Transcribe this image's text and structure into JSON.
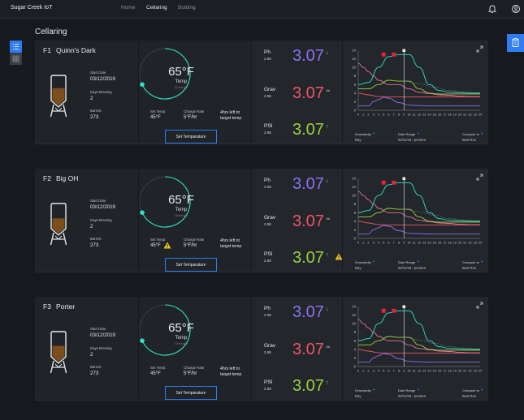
{
  "app": {
    "title": "Sugar Creek IoT"
  },
  "nav": {
    "tabs": [
      "Home",
      "Cellaring",
      "Bottling"
    ],
    "active": "Cellaring"
  },
  "page": {
    "title": "Cellaring"
  },
  "icons": {
    "notification": "bell-icon",
    "user": "user-icon",
    "list_view": "list-icon",
    "grid_view": "grid-icon",
    "clipboard": "clipboard-icon",
    "expand": "expand-icon"
  },
  "colors": {
    "accent": "#2e7df2",
    "teal": "#2ee6c4",
    "ph": "#8f6ff0",
    "grav": "#ef5468",
    "psi": "#9bd13a",
    "beer": "#7c4e1b",
    "warning": "#f3c522",
    "marker": "#e0243a"
  },
  "cards": [
    {
      "id": "F1",
      "name": "Quinn's Dark",
      "start_date_label": "Start Date",
      "start_date": "03/12/2019",
      "days_label": "Days Brewing",
      "days": "2",
      "barrels_label": "Barrels",
      "barrels": "273",
      "fill_level": 0.62,
      "temp": {
        "value": "65°F",
        "label": "Temp",
        "ago": "51 min ago",
        "dial_fraction": 0.68
      },
      "set_temp_label": "Set Temp:",
      "set_temp": "45°F",
      "set_temp_warning": false,
      "change_rate_label": "Change Rate",
      "change_rate": "5°F/hr",
      "time_left_line1": "4hrs left to",
      "time_left_line2": "target temp",
      "button": "Set Temparature",
      "metrics": [
        {
          "name": "Ph",
          "sub": "2.98",
          "value": "3.07",
          "trend": "↓",
          "warning": false
        },
        {
          "name": "Grav",
          "sub": "2.98",
          "value": "3.07",
          "trend": "≃",
          "warning": false
        },
        {
          "name": "PSI",
          "sub": "2.98",
          "value": "3.07",
          "trend": "↑",
          "warning": false
        }
      ]
    },
    {
      "id": "F2",
      "name": "Big OH",
      "start_date_label": "Start Date",
      "start_date": "03/12/2019",
      "days_label": "Days Brewing",
      "days": "2",
      "barrels_label": "Barrels",
      "barrels": "273",
      "fill_level": 0.52,
      "temp": {
        "value": "65°F",
        "label": "Temp",
        "ago": "25 min ago",
        "dial_fraction": 0.68
      },
      "set_temp_label": "Set Temp:",
      "set_temp": "45°F",
      "set_temp_warning": true,
      "change_rate_label": "Change Rate",
      "change_rate": "5°F/hr",
      "time_left_line1": "4hrs left to",
      "time_left_line2": "target temp",
      "button": "Set Temparature",
      "metrics": [
        {
          "name": "Ph",
          "sub": "2.98",
          "value": "3.07",
          "trend": "↓",
          "warning": false
        },
        {
          "name": "Grav",
          "sub": "2.98",
          "value": "3.07",
          "trend": "≃",
          "warning": false
        },
        {
          "name": "PSI",
          "sub": "2.98",
          "value": "3.07",
          "trend": "↑",
          "warning": true
        }
      ]
    },
    {
      "id": "F3",
      "name": "Porter",
      "start_date_label": "Start Date",
      "start_date": "03/12/2019",
      "days_label": "Days Brewing",
      "days": "2",
      "barrels_label": "Barrels",
      "barrels": "273",
      "fill_level": 0.55,
      "temp": {
        "value": "65°F",
        "label": "Temp",
        "ago": "43 min ago",
        "dial_fraction": 0.68
      },
      "set_temp_label": "Set Temp:",
      "set_temp": "45°F",
      "set_temp_warning": false,
      "change_rate_label": "Change Rate",
      "change_rate": "5°F/hr",
      "time_left_line1": "4hrs left to",
      "time_left_line2": "target temp",
      "button": "Set Temparature",
      "metrics": [
        {
          "name": "Ph",
          "sub": "2.98",
          "value": "3.07",
          "trend": "↓",
          "warning": false
        },
        {
          "name": "Grav",
          "sub": "2.98",
          "value": "3.07",
          "trend": "≃",
          "warning": false
        },
        {
          "name": "PSI",
          "sub": "2.98",
          "value": "3.07",
          "trend": "↑",
          "warning": false
        }
      ]
    }
  ],
  "chart_controls": {
    "granularity_label": "Granularity",
    "granularity_value": "Day",
    "range_label": "Date Range",
    "range_value": "03/12/19 - present",
    "compare_label": "Compare to",
    "compare_value": "Best Run"
  },
  "chart_data": {
    "type": "line",
    "x": [
      0,
      1,
      2,
      3,
      4,
      5,
      6,
      7,
      8,
      9,
      10,
      11,
      12,
      13,
      14,
      15,
      16,
      17,
      18,
      19,
      20,
      21,
      22,
      23,
      24
    ],
    "ylim": [
      0,
      14
    ],
    "yticks": [
      0,
      2,
      4,
      6,
      8,
      10,
      12,
      14
    ],
    "marker_x": 9,
    "red_markers": [
      5,
      7
    ],
    "series": [
      {
        "name": "teal",
        "color": "#2ee6c4",
        "x": [
          0,
          2,
          4,
          6,
          8,
          10,
          12,
          14,
          16,
          18,
          20,
          22,
          24
        ],
        "values": [
          6,
          6.5,
          10,
          12.5,
          13,
          13,
          10,
          6,
          4.6,
          4.2,
          4.1,
          4,
          4
        ]
      },
      {
        "name": "pink",
        "color": "#e8709c",
        "x": [
          0,
          1,
          2,
          3,
          4,
          6,
          8,
          10,
          12,
          14,
          16,
          18,
          20,
          22,
          24
        ],
        "values": [
          11,
          10,
          9,
          8,
          7,
          6,
          6,
          5,
          4.2,
          3.9,
          3.6,
          3.5,
          3.3,
          3.2,
          3.2
        ]
      },
      {
        "name": "green",
        "color": "#9bd13a",
        "x": [
          0,
          2,
          4,
          6,
          8,
          10,
          12,
          14,
          16,
          18,
          20,
          22,
          24
        ],
        "values": [
          5,
          5,
          6,
          7,
          6.8,
          6.8,
          5,
          4,
          3.8,
          3.8,
          3.8,
          3.8,
          3.8
        ]
      },
      {
        "name": "red",
        "color": "#ef5468",
        "x": [
          0,
          2,
          4,
          6,
          8,
          10,
          12,
          14,
          16,
          18,
          20,
          22,
          24
        ],
        "values": [
          4,
          3.6,
          3.2,
          3.1,
          3.1,
          3.1,
          3.1,
          3.1,
          3.1,
          3.1,
          3.1,
          3.1,
          3.1
        ]
      },
      {
        "name": "purple",
        "color": "#8f6ff0",
        "x": [
          0,
          2,
          3,
          4,
          5,
          6,
          8,
          10,
          12,
          14,
          16,
          18,
          20,
          22,
          24
        ],
        "values": [
          1,
          1,
          2,
          2.5,
          3,
          2.8,
          1.8,
          1.2,
          1.1,
          1,
          1,
          1,
          1,
          1,
          1
        ]
      },
      {
        "name": "dashed",
        "color": "#7c8690",
        "dashed": true,
        "x": [
          9,
          12,
          15,
          18,
          21,
          24
        ],
        "values": [
          6.8,
          6.2,
          5.4,
          4.6,
          4.3,
          4.1
        ]
      }
    ]
  }
}
